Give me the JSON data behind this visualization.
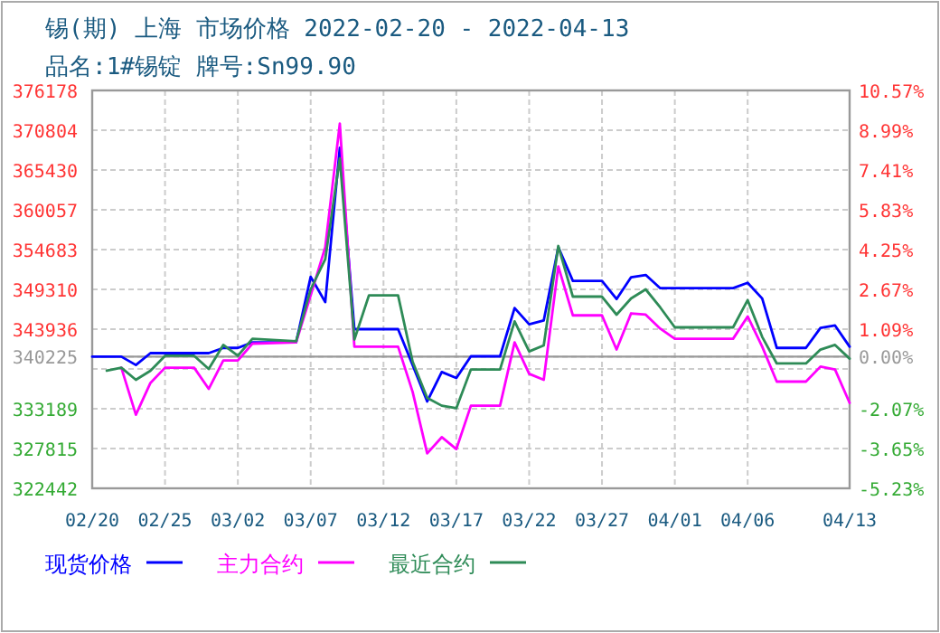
{
  "chart_data": {
    "type": "line",
    "title": "锡(期) 上海 市场价格 2022-02-20 - 2022-04-13",
    "subtitle": "品名:1#锡锭 牌号:Sn99.90",
    "xlim": [
      "2022-02-20",
      "2022-04-13"
    ],
    "xticks": [
      {
        "value": "2022-02-20",
        "label": "02/20"
      },
      {
        "value": "2022-02-25",
        "label": "02/25"
      },
      {
        "value": "2022-03-02",
        "label": "03/02"
      },
      {
        "value": "2022-03-07",
        "label": "03/07"
      },
      {
        "value": "2022-03-12",
        "label": "03/12"
      },
      {
        "value": "2022-03-17",
        "label": "03/17"
      },
      {
        "value": "2022-03-22",
        "label": "03/22"
      },
      {
        "value": "2022-03-27",
        "label": "03/27"
      },
      {
        "value": "2022-04-01",
        "label": "04/01"
      },
      {
        "value": "2022-04-06",
        "label": "04/06"
      },
      {
        "value": "2022-04-13",
        "label": "04/13"
      }
    ],
    "ylim": [
      322442,
      376178
    ],
    "yticks": [
      322442,
      327815,
      333189,
      {
        "value": 338563,
        "label": null
      },
      340225,
      343936,
      349310,
      354683,
      360057,
      365430,
      370804,
      376178
    ],
    "y2lim": [
      -5.23,
      10.57
    ],
    "y2ticks": [
      {
        "value": -5.23,
        "label": "-5.23%"
      },
      {
        "value": -3.65,
        "label": "-3.65%"
      },
      {
        "value": -2.07,
        "label": "-2.07%"
      },
      {
        "value": 0,
        "label": "0.00%"
      },
      {
        "value": 1.09,
        "label": "1.09%"
      },
      {
        "value": 2.67,
        "label": "2.67%"
      },
      {
        "value": 4.25,
        "label": "4.25%"
      },
      {
        "value": 5.83,
        "label": "5.83%"
      },
      {
        "value": 7.41,
        "label": "7.41%"
      },
      {
        "value": 8.99,
        "label": "8.99%"
      },
      {
        "value": 10.57,
        "label": "10.57%"
      }
    ],
    "ref_lines": [
      {
        "axis": "y",
        "value": 340225,
        "color": "#999999"
      }
    ],
    "grid": true,
    "legend": "bottom",
    "marker": "none",
    "line_style": "solid",
    "series": [
      {
        "name": "现货价格",
        "color": "#0000ff",
        "x": [
          "2022-02-20",
          "2022-02-22",
          "2022-02-23",
          "2022-02-24",
          "2022-02-28",
          "2022-03-01",
          "2022-03-02",
          "2022-03-03",
          "2022-03-06",
          "2022-03-07",
          "2022-03-08",
          "2022-03-09",
          "2022-03-10",
          "2022-03-13",
          "2022-03-14",
          "2022-03-15",
          "2022-03-16",
          "2022-03-17",
          "2022-03-18",
          "2022-03-20",
          "2022-03-21",
          "2022-03-22",
          "2022-03-23",
          "2022-03-24",
          "2022-03-25",
          "2022-03-27",
          "2022-03-28",
          "2022-03-29",
          "2022-03-30",
          "2022-03-31",
          "2022-04-05",
          "2022-04-06",
          "2022-04-07",
          "2022-04-08",
          "2022-04-10",
          "2022-04-11",
          "2022-04-12",
          "2022-04-13"
        ],
        "values": [
          340225,
          340225,
          339100,
          340700,
          340700,
          341400,
          341400,
          342150,
          342150,
          351000,
          347600,
          368440,
          343935,
          343935,
          339100,
          334170,
          338150,
          337340,
          340270,
          340270,
          346800,
          344600,
          345100,
          355000,
          350450,
          350450,
          348000,
          350950,
          351260,
          349470,
          349470,
          350200,
          348080,
          341400,
          341400,
          344100,
          344430,
          341570
        ]
      },
      {
        "name": "主力合约",
        "color": "#ff00ff",
        "x": [
          "2022-02-22",
          "2022-02-23",
          "2022-02-24",
          "2022-02-25",
          "2022-02-27",
          "2022-02-28",
          "2022-03-01",
          "2022-03-02",
          "2022-03-03",
          "2022-03-06",
          "2022-03-07",
          "2022-03-08",
          "2022-03-09",
          "2022-03-10",
          "2022-03-13",
          "2022-03-14",
          "2022-03-15",
          "2022-03-16",
          "2022-03-17",
          "2022-03-18",
          "2022-03-20",
          "2022-03-21",
          "2022-03-22",
          "2022-03-23",
          "2022-03-24",
          "2022-03-25",
          "2022-03-27",
          "2022-03-28",
          "2022-03-29",
          "2022-03-30",
          "2022-03-31",
          "2022-04-01",
          "2022-04-05",
          "2022-04-06",
          "2022-04-07",
          "2022-04-08",
          "2022-04-10",
          "2022-04-11",
          "2022-04-12",
          "2022-04-13"
        ],
        "values": [
          338730,
          332380,
          336680,
          338730,
          338730,
          335870,
          339700,
          339700,
          341980,
          342150,
          348500,
          355000,
          371700,
          341570,
          341570,
          335460,
          327160,
          329350,
          327740,
          333600,
          333600,
          342150,
          337900,
          337100,
          352410,
          345800,
          345800,
          341180,
          346070,
          345900,
          344010,
          342640,
          342640,
          345650,
          341570,
          336850,
          336850,
          338880,
          338490,
          333990
        ]
      },
      {
        "name": "最近合约",
        "color": "#2e8b57",
        "x": [
          "2022-02-21",
          "2022-02-22",
          "2022-02-23",
          "2022-02-24",
          "2022-02-25",
          "2022-02-27",
          "2022-02-28",
          "2022-03-01",
          "2022-03-02",
          "2022-03-03",
          "2022-03-06",
          "2022-03-07",
          "2022-03-08",
          "2022-03-09",
          "2022-03-10",
          "2022-03-11",
          "2022-03-13",
          "2022-03-14",
          "2022-03-15",
          "2022-03-16",
          "2022-03-17",
          "2022-03-18",
          "2022-03-20",
          "2022-03-21",
          "2022-03-22",
          "2022-03-23",
          "2022-03-24",
          "2022-03-25",
          "2022-03-27",
          "2022-03-28",
          "2022-03-29",
          "2022-03-30",
          "2022-03-31",
          "2022-04-01",
          "2022-04-05",
          "2022-04-06",
          "2022-04-07",
          "2022-04-08",
          "2022-04-10",
          "2022-04-11",
          "2022-04-12",
          "2022-04-13"
        ],
        "values": [
          338320,
          338730,
          337100,
          338320,
          340340,
          340340,
          338560,
          341810,
          340340,
          342640,
          342300,
          349310,
          353380,
          367000,
          342540,
          348500,
          348500,
          339540,
          334650,
          333600,
          333260,
          338490,
          338490,
          344990,
          340930,
          341740,
          355170,
          348330,
          348330,
          345890,
          348090,
          349310,
          346870,
          344180,
          344180,
          347850,
          342890,
          339300,
          339300,
          341180,
          341810,
          339950
        ]
      }
    ]
  }
}
